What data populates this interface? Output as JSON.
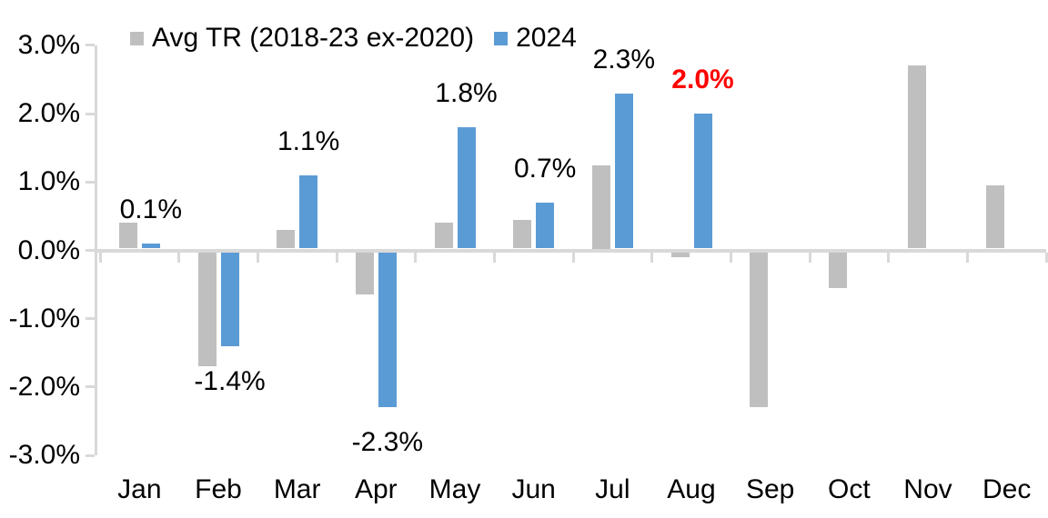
{
  "chart_data": {
    "type": "bar",
    "categories": [
      "Jan",
      "Feb",
      "Mar",
      "Apr",
      "May",
      "Jun",
      "Jul",
      "Aug",
      "Sep",
      "Oct",
      "Nov",
      "Dec"
    ],
    "series": [
      {
        "name": "Avg TR (2018-23 ex-2020)",
        "color": "#BFBFBF",
        "values": [
          0.4,
          -1.7,
          0.3,
          -0.65,
          0.4,
          0.45,
          1.25,
          -0.1,
          -2.3,
          -0.55,
          2.7,
          0.95
        ]
      },
      {
        "name": "2024",
        "color": "#5B9BD5",
        "values": [
          0.1,
          -1.4,
          1.1,
          -2.3,
          1.8,
          0.7,
          2.3,
          2.0,
          null,
          null,
          null,
          null
        ],
        "labels": [
          {
            "text": "0.1%"
          },
          {
            "text": "-1.4%"
          },
          {
            "text": "1.1%"
          },
          {
            "text": "-2.3%"
          },
          {
            "text": "1.8%"
          },
          {
            "text": "0.7%"
          },
          {
            "text": "2.3%"
          },
          {
            "text": "2.0%",
            "color": "#FF0000",
            "bold": true
          },
          null,
          null,
          null,
          null
        ]
      }
    ],
    "title": "",
    "xlabel": "",
    "ylabel": "",
    "ylim": [
      -3.0,
      3.0
    ],
    "ytick_step": 1.0,
    "yticks": [
      "3.0%",
      "2.0%",
      "1.0%",
      "0.0%",
      "-1.0%",
      "-2.0%",
      "-3.0%"
    ],
    "grid": false,
    "legend_position": "top",
    "axis_color": "#D9D9D9",
    "text_color": "#000000",
    "label_highlight_color": "#FF0000",
    "background_color": "#FFFFFF"
  }
}
